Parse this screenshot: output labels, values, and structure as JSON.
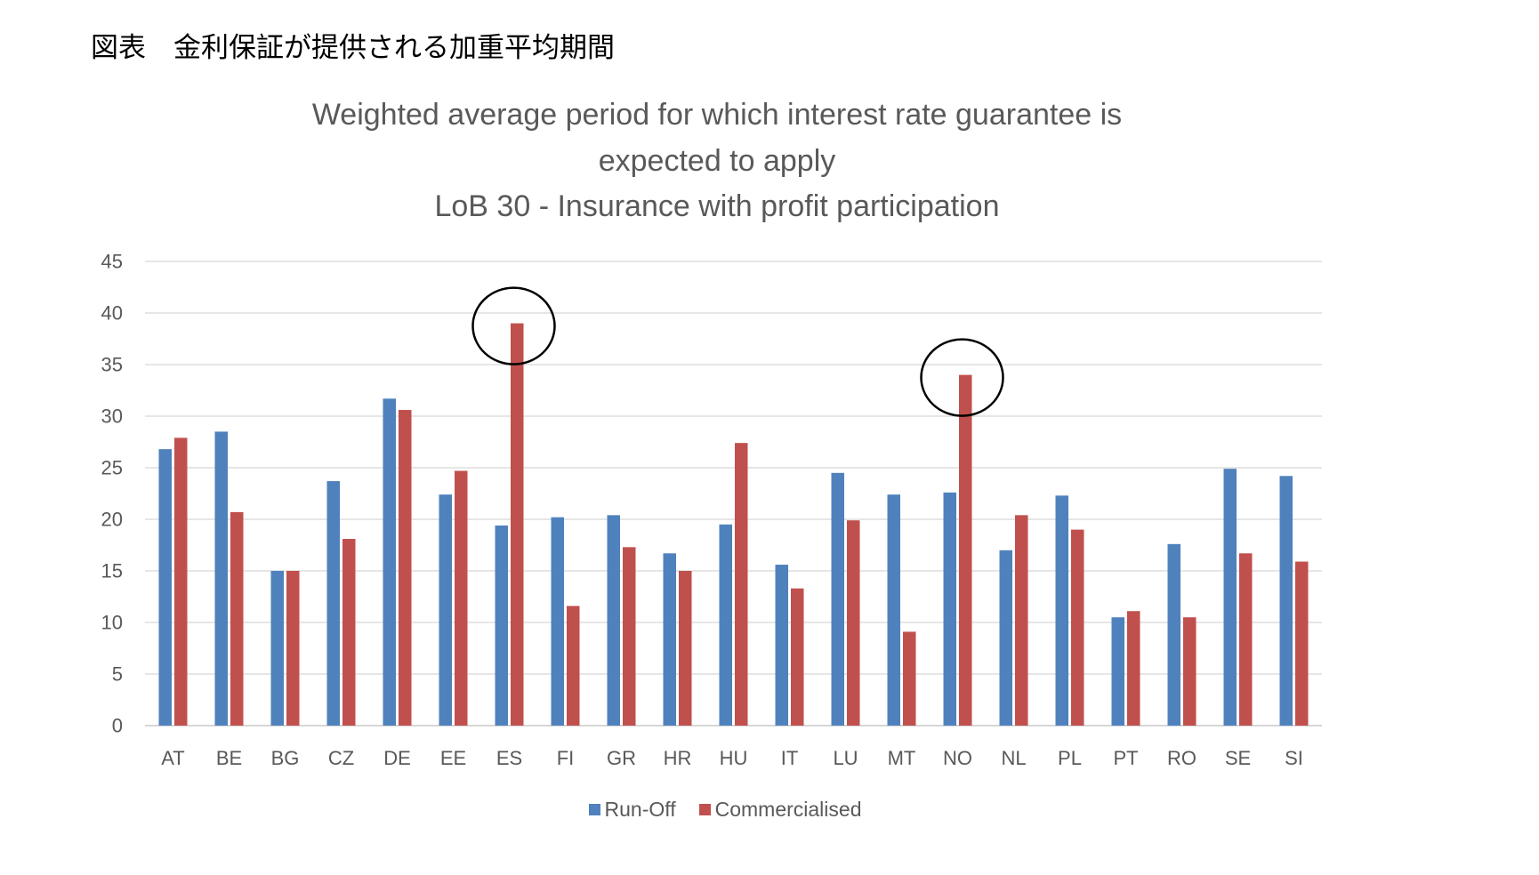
{
  "caption": "図表　金利保証が提供される加重平均期間",
  "chart_data": {
    "type": "bar",
    "title": [
      "Weighted average period for which interest rate guarantee is",
      "expected to apply"
    ],
    "subtitle": "LoB 30 - Insurance with profit participation",
    "xlabel": "",
    "ylabel": "",
    "categories": [
      "AT",
      "BE",
      "BG",
      "CZ",
      "DE",
      "EE",
      "ES",
      "FI",
      "GR",
      "HR",
      "HU",
      "IT",
      "LU",
      "MT",
      "NO",
      "NL",
      "PL",
      "PT",
      "RO",
      "SE",
      "SI"
    ],
    "series": [
      {
        "name": "Run-Off",
        "color": "#4F81BD",
        "values": [
          26.8,
          28.5,
          15.0,
          23.7,
          31.7,
          22.4,
          19.4,
          20.2,
          20.4,
          16.7,
          19.5,
          15.6,
          24.5,
          22.4,
          22.6,
          17.0,
          22.3,
          10.5,
          17.6,
          24.9,
          24.2
        ]
      },
      {
        "name": "Commercialised",
        "color": "#C0504D",
        "values": [
          27.9,
          20.7,
          15.0,
          18.1,
          30.6,
          24.7,
          39.0,
          11.6,
          17.3,
          15.0,
          27.4,
          13.3,
          19.9,
          9.1,
          34.0,
          20.4,
          19.0,
          11.1,
          10.5,
          16.7,
          15.9
        ]
      }
    ],
    "ylim": [
      0,
      45
    ],
    "yticks": [
      0,
      5,
      10,
      15,
      20,
      25,
      30,
      35,
      40,
      45
    ],
    "grid": true,
    "legend_position": "bottom",
    "highlighted_category_indices": [
      6,
      14
    ]
  }
}
